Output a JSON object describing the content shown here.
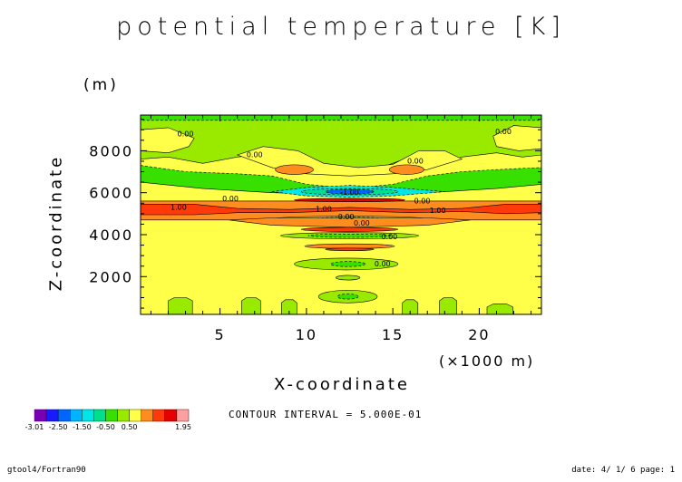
{
  "title": "potential temperature [K]",
  "footer": {
    "left": "gtool4/Fortran90",
    "right": "date: 4/ 1/ 6 page: 1"
  },
  "contour_interval_text": "CONTOUR INTERVAL = 5.000E-01",
  "colorbar": {
    "colors": [
      "#7a00b8",
      "#1a1aff",
      "#0066ff",
      "#00b4ff",
      "#00e6e6",
      "#00e08c",
      "#38e000",
      "#9aea00",
      "#ffff4a",
      "#ff8c1e",
      "#ff3a0a",
      "#e60000",
      "#ffa0a0"
    ],
    "tick_labels": [
      "-3.01",
      "-2.50",
      "-1.50",
      "-0.50",
      "0.50",
      "1.95"
    ]
  },
  "chart_data": {
    "type": "heatmap",
    "title": "potential temperature [K]",
    "xlabel": "X-coordinate",
    "x_unit": "(×1000 m)",
    "ylabel": "Z-coordinate",
    "y_unit": "(m)",
    "xlim": [
      0.4,
      23.6
    ],
    "ylim": [
      200,
      9700
    ],
    "x_ticks": [
      5,
      10,
      15,
      20
    ],
    "y_ticks": [
      2000,
      4000,
      6000,
      8000
    ],
    "contour_interval": 0.5,
    "range": [
      -3.01,
      1.95
    ],
    "contour_labels": [
      {
        "text": "0.00",
        "x": 3.0,
        "z": 8800
      },
      {
        "text": "0.00",
        "x": 7.0,
        "z": 7800
      },
      {
        "text": "0.00",
        "x": 16.3,
        "z": 7500
      },
      {
        "text": "0.00",
        "x": 21.4,
        "z": 8900
      },
      {
        "text": "0.00",
        "x": 5.6,
        "z": 5700
      },
      {
        "text": "0.00",
        "x": 16.7,
        "z": 5600
      },
      {
        "text": "-1.00",
        "x": 12.5,
        "z": 6000
      },
      {
        "text": "1.00",
        "x": 2.6,
        "z": 5300
      },
      {
        "text": "1.00",
        "x": 11.0,
        "z": 5200
      },
      {
        "text": "1.00",
        "x": 17.6,
        "z": 5150
      },
      {
        "text": "0.00",
        "x": 12.3,
        "z": 4850
      },
      {
        "text": "0.00",
        "x": 13.2,
        "z": 4550
      },
      {
        "text": "0.00",
        "x": 14.8,
        "z": 3900
      },
      {
        "text": "0.00",
        "x": 14.4,
        "z": 2600
      }
    ]
  }
}
